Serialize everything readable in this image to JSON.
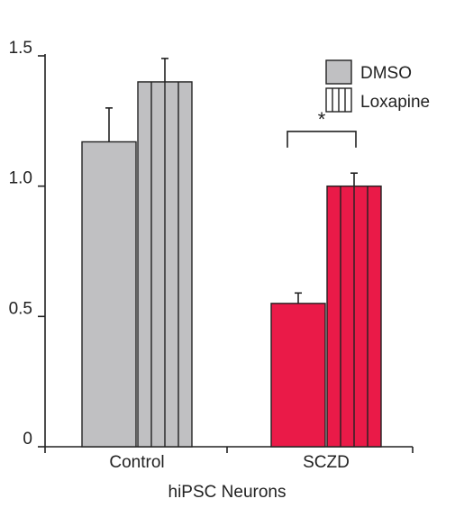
{
  "chart_data": {
    "type": "bar",
    "title": "",
    "xlabel": "hiPSC Neurons",
    "ylabel": "",
    "ylim": [
      0,
      1.5
    ],
    "yticks": [
      {
        "value": 0,
        "label": "0"
      },
      {
        "value": 0.5,
        "label": "0.5"
      },
      {
        "value": 1.0,
        "label": "1.0"
      },
      {
        "value": 1.5,
        "label": "1.5"
      }
    ],
    "categories": [
      "Control",
      "SCZD"
    ],
    "series": [
      {
        "name": "DMSO",
        "pattern": "solid",
        "values": [
          1.17,
          0.55
        ],
        "errors": [
          0.13,
          0.04
        ]
      },
      {
        "name": "Loxapine",
        "pattern": "vertical-stripes",
        "values": [
          1.4,
          1.0
        ],
        "errors": [
          0.09,
          0.05
        ]
      }
    ],
    "category_colors": [
      "#c0c0c2",
      "#ea1a48"
    ],
    "legend": {
      "position": "top-right"
    },
    "grid": false,
    "annotations": [
      {
        "text": "*",
        "category": "SCZD",
        "between_series": [
          "DMSO",
          "Loxapine"
        ]
      }
    ]
  }
}
